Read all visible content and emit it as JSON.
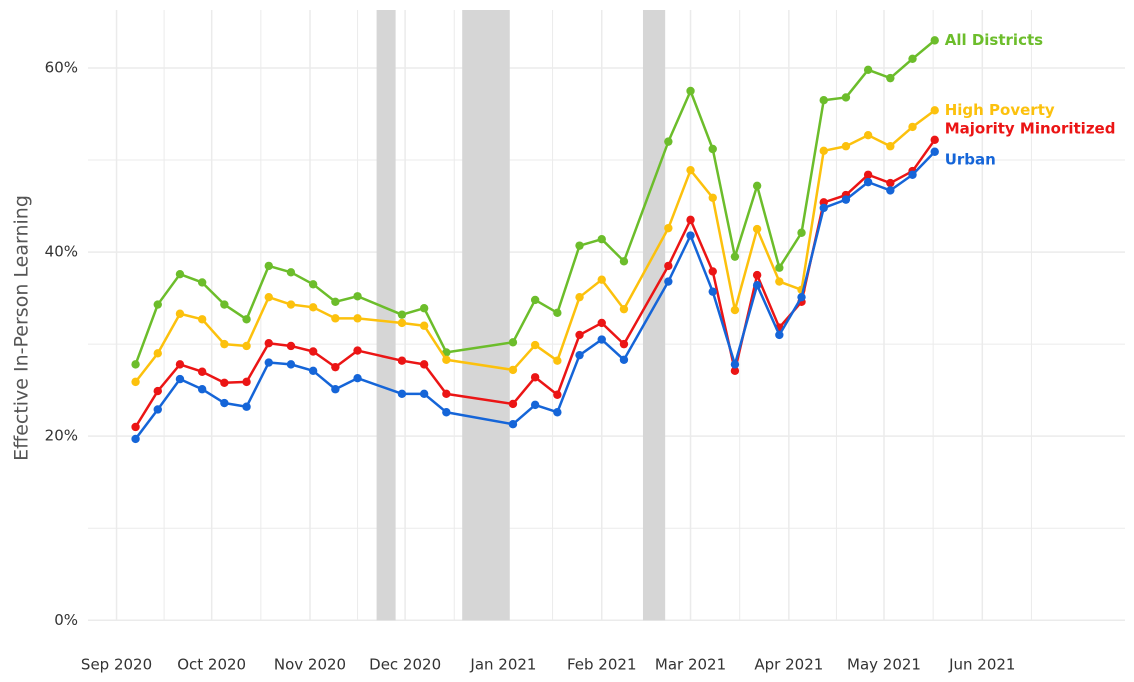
{
  "chart_data": {
    "type": "line",
    "y_label": "Effective In-Person Learning",
    "x": [
      6,
      13,
      20,
      27,
      34,
      41,
      48,
      55,
      62,
      69,
      76,
      90,
      97,
      104,
      125,
      132,
      139,
      146,
      153,
      160,
      174,
      181,
      188,
      195,
      202,
      209,
      216,
      223,
      230,
      237,
      244,
      251,
      258
    ],
    "series": [
      {
        "name": "All Districts",
        "color": "#6cbd2b",
        "values": [
          27.8,
          34.3,
          37.6,
          36.7,
          34.3,
          32.7,
          38.5,
          37.8,
          36.5,
          34.6,
          35.2,
          33.2,
          33.9,
          29.1,
          30.2,
          34.8,
          33.4,
          40.7,
          41.4,
          39.0,
          52.0,
          57.5,
          51.2,
          39.5,
          47.2,
          38.3,
          42.1,
          56.5,
          56.8,
          59.8,
          58.9,
          61.0,
          63.0
        ]
      },
      {
        "name": "High Poverty",
        "color": "#fcc10d",
        "values": [
          25.9,
          29.0,
          33.3,
          32.7,
          30.0,
          29.8,
          35.1,
          34.3,
          34.0,
          32.8,
          32.8,
          32.3,
          32.0,
          28.3,
          27.2,
          29.9,
          28.2,
          35.1,
          37.0,
          33.8,
          42.6,
          48.9,
          45.9,
          33.7,
          42.5,
          36.8,
          35.9,
          51.0,
          51.5,
          52.7,
          51.5,
          53.6,
          55.4
        ]
      },
      {
        "name": "Majority Minoritized",
        "color": "#eb1515",
        "values": [
          21.0,
          24.9,
          27.8,
          27.0,
          25.8,
          25.9,
          30.1,
          29.8,
          29.2,
          27.5,
          29.3,
          28.2,
          27.8,
          24.6,
          23.5,
          26.4,
          24.5,
          31.0,
          32.3,
          30.0,
          38.5,
          43.5,
          37.9,
          27.1,
          37.5,
          31.8,
          34.6,
          45.4,
          46.2,
          48.4,
          47.5,
          48.8,
          52.2
        ]
      },
      {
        "name": "Urban",
        "color": "#1565d8",
        "values": [
          19.7,
          22.9,
          26.2,
          25.1,
          23.6,
          23.2,
          28.0,
          27.8,
          27.1,
          25.1,
          26.3,
          24.6,
          24.6,
          22.6,
          21.3,
          23.4,
          22.6,
          28.8,
          30.5,
          28.3,
          36.8,
          41.8,
          35.7,
          27.8,
          36.4,
          31.0,
          35.1,
          44.8,
          45.7,
          47.6,
          46.7,
          48.4,
          50.9
        ]
      }
    ],
    "shaded_periods": [
      [
        82,
        88
      ],
      [
        109,
        124
      ],
      [
        166,
        173
      ]
    ],
    "xlim": [
      -9,
      318
    ],
    "xticks": [
      {
        "value": 0,
        "label": "Sep 2020"
      },
      {
        "value": 30,
        "label": "Oct 2020"
      },
      {
        "value": 61,
        "label": "Nov 2020"
      },
      {
        "value": 91,
        "label": "Dec 2020"
      },
      {
        "value": 122,
        "label": "Jan 2021"
      },
      {
        "value": 153,
        "label": "Feb 2021"
      },
      {
        "value": 181,
        "label": "Mar 2021"
      },
      {
        "value": 212,
        "label": "Apr 2021"
      },
      {
        "value": 242,
        "label": "May 2021"
      },
      {
        "value": 273,
        "label": "Jun 2021"
      }
    ],
    "ylim": [
      -1.6,
      66.3
    ],
    "yticks": [
      {
        "value": 0,
        "label": "0%"
      },
      {
        "value": 20,
        "label": "20%"
      },
      {
        "value": 40,
        "label": "40%"
      },
      {
        "value": 60,
        "label": "60%"
      }
    ],
    "minor_yticks": [
      10,
      30,
      50
    ],
    "grid": true
  }
}
